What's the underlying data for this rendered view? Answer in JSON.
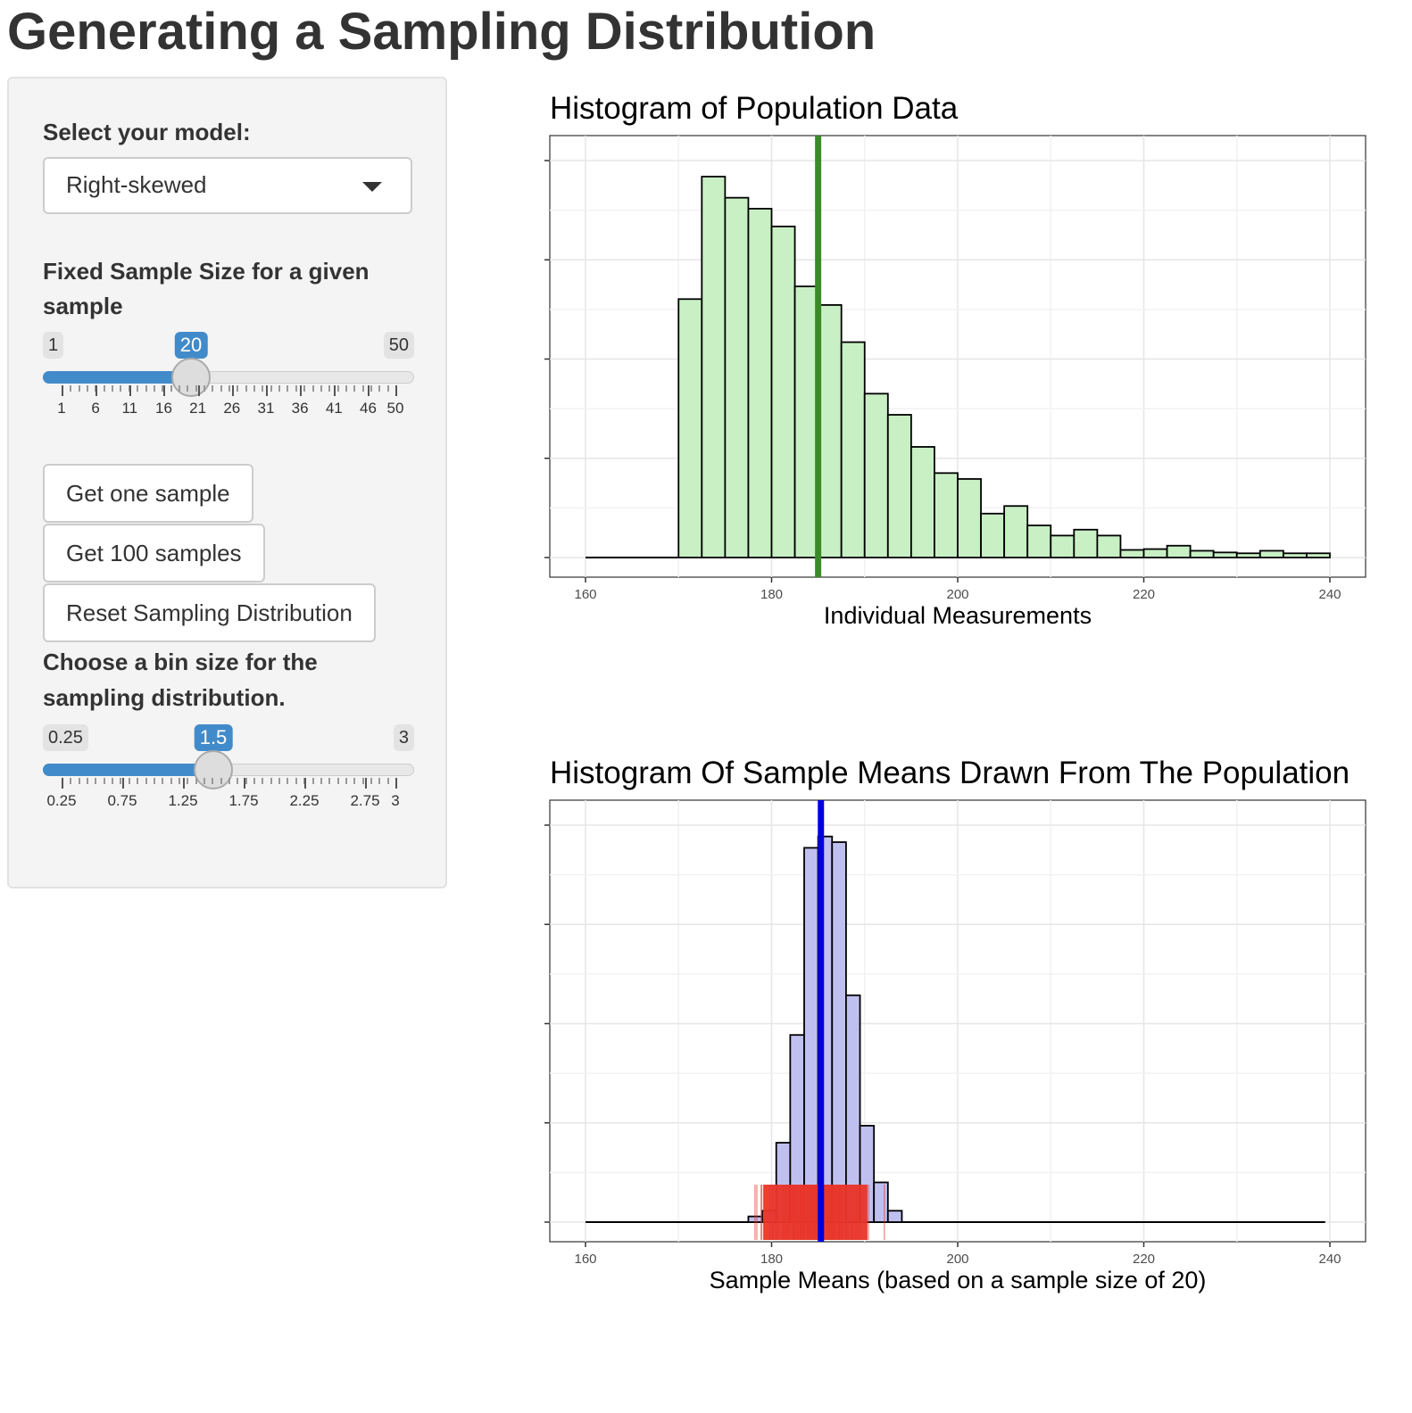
{
  "page": {
    "title": "Generating a Sampling Distribution"
  },
  "sidebar": {
    "model_label": "Select your model:",
    "model_value": "Right-skewed",
    "sample_size_label_line1": "Fixed Sample Size for a given",
    "sample_size_label_line2": "sample",
    "sample_size": {
      "min": 1,
      "max": 50,
      "value": 20,
      "tick_labels": [
        "1",
        "6",
        "11",
        "16",
        "21",
        "26",
        "31",
        "36",
        "41",
        "46",
        "50"
      ]
    },
    "buttons": {
      "one": "Get one sample",
      "hundred": "Get 100 samples",
      "reset": "Reset Sampling Distribution"
    },
    "bin_label_line1": "Choose a bin size for the",
    "bin_label_line2": "sampling distribution.",
    "bin_size": {
      "min": 0.25,
      "max": 3,
      "value": 1.5,
      "min_label": "0.25",
      "max_label": "3",
      "value_label": "1.5",
      "tick_labels": [
        "0.25",
        "0.75",
        "1.25",
        "1.75",
        "2.25",
        "2.75",
        "3"
      ]
    }
  },
  "colors": {
    "accent": "#428bca",
    "population_fill": "#c8f0c4",
    "population_mean": "#3a8b28",
    "sampling_fill": "#c0c0f0",
    "sampling_mean": "#0000dd",
    "sample_rug": "#e8352a"
  },
  "chart_data": [
    {
      "type": "bar",
      "title": "Histogram of Population Data",
      "xlabel": "Individual Measurements",
      "xlim": [
        160,
        240
      ],
      "x_ticks": [
        160,
        180,
        200,
        220,
        240
      ],
      "bin_width": 2.5,
      "bin_starts": [
        170,
        172.5,
        175,
        177.5,
        180,
        182.5,
        185,
        187.5,
        190,
        192.5,
        195,
        197.5,
        200,
        202.5,
        205,
        207.5,
        210,
        212.5,
        215,
        217.5,
        220,
        222.5,
        225,
        227.5,
        230,
        232.5,
        235,
        237.5
      ],
      "values": [
        306,
        451,
        426,
        413,
        392,
        321,
        299,
        255,
        194,
        169,
        131,
        100,
        93,
        52,
        61,
        38,
        26,
        33,
        26,
        9,
        10,
        14,
        8,
        6,
        5,
        8,
        5,
        5
      ],
      "baseline_from": 160,
      "mean_line": 185
    },
    {
      "type": "bar",
      "title": "Histogram Of Sample Means Drawn From The Population",
      "xlabel": "Sample Means (based on a sample size of 20)",
      "xlim": [
        160,
        240
      ],
      "x_ticks": [
        160,
        180,
        200,
        220,
        240
      ],
      "bin_width": 1.5,
      "bin_starts": [
        177.5,
        179,
        180.5,
        182,
        183.5,
        185,
        186.5,
        188,
        189.5,
        191,
        192.5
      ],
      "values": [
        1,
        2,
        14,
        33,
        66,
        68,
        67,
        40,
        17,
        7,
        2
      ],
      "baseline_from": 160,
      "baseline_to": 239.5,
      "mean_line": 185.3,
      "rug_range": [
        176.5,
        193.5
      ]
    }
  ]
}
